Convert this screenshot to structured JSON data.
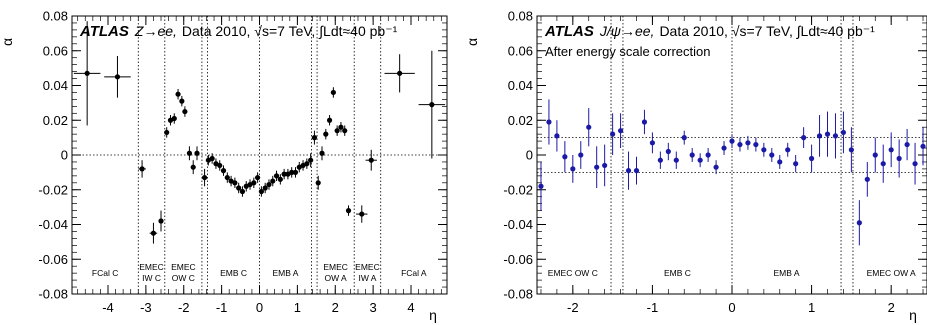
{
  "chart_data": [
    {
      "type": "scatter",
      "title_atlas": "ATLAS",
      "title_process": "Z→ee,",
      "title_rest": "Data 2010, √s=7 TeV, ∫Ldt≈40 pb⁻¹",
      "subtitle": "",
      "xlabel": "η",
      "ylabel": "α",
      "xlim": [
        -4.95,
        4.95
      ],
      "ylim": [
        -0.08,
        0.08
      ],
      "xticks": [
        -4,
        -3,
        -2,
        -1,
        0,
        1,
        2,
        3,
        4
      ],
      "xtick_labels": [
        "-4",
        "-3",
        "-2",
        "-1",
        "0",
        "1",
        "2",
        "3",
        "4"
      ],
      "yticks": [
        -0.08,
        -0.06,
        -0.04,
        -0.02,
        0,
        0.02,
        0.04,
        0.06,
        0.08
      ],
      "ytick_labels": [
        "-0.08",
        "-0.06",
        "-0.04",
        "-0.02",
        "0",
        "0.02",
        "0.04",
        "0.06",
        "0.08"
      ],
      "color": "#000000",
      "reference_lines": [
        0
      ],
      "boundaries": [
        -3.2,
        -2.5,
        -1.52,
        -1.37,
        0,
        1.37,
        1.52,
        2.5,
        3.2
      ],
      "region_labels": [
        {
          "lines": [
            "FCal C"
          ],
          "x": -4.075
        },
        {
          "lines": [
            "EMEC",
            "IW C"
          ],
          "x": -2.85
        },
        {
          "lines": [
            "EMEC",
            "OW C"
          ],
          "x": -2.01
        },
        {
          "lines": [
            "EMB C"
          ],
          "x": -0.685
        },
        {
          "lines": [
            "EMB A"
          ],
          "x": 0.685
        },
        {
          "lines": [
            "EMEC",
            "OW A"
          ],
          "x": 2.01
        },
        {
          "lines": [
            "EMEC",
            "IW A"
          ],
          "x": 2.85
        },
        {
          "lines": [
            "FCal A"
          ],
          "x": 4.075
        }
      ],
      "points": [
        {
          "x": -4.55,
          "y": 0.047,
          "xerr": 0.35,
          "yerr": 0.03
        },
        {
          "x": -3.75,
          "y": 0.045,
          "xerr": 0.35,
          "yerr": 0.012
        },
        {
          "x": -3.1,
          "y": -0.008,
          "xerr": 0.1,
          "yerr": 0.005
        },
        {
          "x": -2.8,
          "y": -0.045,
          "xerr": 0.1,
          "yerr": 0.006
        },
        {
          "x": -2.6,
          "y": -0.038,
          "xerr": 0.0,
          "yerr": 0.006
        },
        {
          "x": -2.45,
          "y": 0.013,
          "xerr": 0.0,
          "yerr": 0.003
        },
        {
          "x": -2.35,
          "y": 0.02,
          "xerr": 0.0,
          "yerr": 0.003
        },
        {
          "x": -2.25,
          "y": 0.021,
          "xerr": 0.0,
          "yerr": 0.003
        },
        {
          "x": -2.15,
          "y": 0.035,
          "xerr": 0.0,
          "yerr": 0.003
        },
        {
          "x": -2.05,
          "y": 0.031,
          "xerr": 0.0,
          "yerr": 0.003
        },
        {
          "x": -1.97,
          "y": 0.025,
          "xerr": 0.0,
          "yerr": 0.003
        },
        {
          "x": -1.85,
          "y": 0.001,
          "xerr": 0.0,
          "yerr": 0.004
        },
        {
          "x": -1.75,
          "y": -0.007,
          "xerr": 0.0,
          "yerr": 0.004
        },
        {
          "x": -1.65,
          "y": 0.001,
          "xerr": 0.0,
          "yerr": 0.004
        },
        {
          "x": -1.45,
          "y": -0.013,
          "xerr": 0.0,
          "yerr": 0.005
        },
        {
          "x": -1.35,
          "y": -0.003,
          "xerr": 0.0,
          "yerr": 0.003
        },
        {
          "x": -1.25,
          "y": -0.002,
          "xerr": 0.0,
          "yerr": 0.003
        },
        {
          "x": -1.15,
          "y": -0.005,
          "xerr": 0.0,
          "yerr": 0.003
        },
        {
          "x": -1.05,
          "y": -0.006,
          "xerr": 0.0,
          "yerr": 0.003
        },
        {
          "x": -0.95,
          "y": -0.009,
          "xerr": 0.0,
          "yerr": 0.003
        },
        {
          "x": -0.85,
          "y": -0.013,
          "xerr": 0.0,
          "yerr": 0.003
        },
        {
          "x": -0.75,
          "y": -0.015,
          "xerr": 0.0,
          "yerr": 0.003
        },
        {
          "x": -0.65,
          "y": -0.016,
          "xerr": 0.0,
          "yerr": 0.003
        },
        {
          "x": -0.55,
          "y": -0.019,
          "xerr": 0.0,
          "yerr": 0.003
        },
        {
          "x": -0.45,
          "y": -0.021,
          "xerr": 0.0,
          "yerr": 0.003
        },
        {
          "x": -0.35,
          "y": -0.018,
          "xerr": 0.0,
          "yerr": 0.003
        },
        {
          "x": -0.25,
          "y": -0.017,
          "xerr": 0.0,
          "yerr": 0.003
        },
        {
          "x": -0.15,
          "y": -0.016,
          "xerr": 0.0,
          "yerr": 0.003
        },
        {
          "x": -0.05,
          "y": -0.013,
          "xerr": 0.0,
          "yerr": 0.003
        },
        {
          "x": 0.05,
          "y": -0.021,
          "xerr": 0.0,
          "yerr": 0.003
        },
        {
          "x": 0.15,
          "y": -0.019,
          "xerr": 0.0,
          "yerr": 0.003
        },
        {
          "x": 0.25,
          "y": -0.017,
          "xerr": 0.0,
          "yerr": 0.003
        },
        {
          "x": 0.35,
          "y": -0.015,
          "xerr": 0.0,
          "yerr": 0.003
        },
        {
          "x": 0.45,
          "y": -0.012,
          "xerr": 0.0,
          "yerr": 0.003
        },
        {
          "x": 0.55,
          "y": -0.014,
          "xerr": 0.0,
          "yerr": 0.003
        },
        {
          "x": 0.65,
          "y": -0.011,
          "xerr": 0.0,
          "yerr": 0.003
        },
        {
          "x": 0.75,
          "y": -0.011,
          "xerr": 0.0,
          "yerr": 0.003
        },
        {
          "x": 0.85,
          "y": -0.01,
          "xerr": 0.0,
          "yerr": 0.003
        },
        {
          "x": 0.95,
          "y": -0.01,
          "xerr": 0.0,
          "yerr": 0.003
        },
        {
          "x": 1.05,
          "y": -0.007,
          "xerr": 0.0,
          "yerr": 0.003
        },
        {
          "x": 1.15,
          "y": -0.006,
          "xerr": 0.0,
          "yerr": 0.003
        },
        {
          "x": 1.25,
          "y": -0.005,
          "xerr": 0.0,
          "yerr": 0.003
        },
        {
          "x": 1.35,
          "y": -0.003,
          "xerr": 0.0,
          "yerr": 0.004
        },
        {
          "x": 1.45,
          "y": 0.01,
          "xerr": 0.0,
          "yerr": 0.004
        },
        {
          "x": 1.55,
          "y": -0.016,
          "xerr": 0.0,
          "yerr": 0.004
        },
        {
          "x": 1.65,
          "y": 0.001,
          "xerr": 0.0,
          "yerr": 0.004
        },
        {
          "x": 1.75,
          "y": 0.012,
          "xerr": 0.0,
          "yerr": 0.003
        },
        {
          "x": 1.85,
          "y": 0.02,
          "xerr": 0.0,
          "yerr": 0.003
        },
        {
          "x": 1.95,
          "y": 0.036,
          "xerr": 0.0,
          "yerr": 0.003
        },
        {
          "x": 2.05,
          "y": 0.014,
          "xerr": 0.0,
          "yerr": 0.003
        },
        {
          "x": 2.15,
          "y": 0.016,
          "xerr": 0.0,
          "yerr": 0.003
        },
        {
          "x": 2.25,
          "y": 0.014,
          "xerr": 0.0,
          "yerr": 0.003
        },
        {
          "x": 2.35,
          "y": -0.032,
          "xerr": 0.0,
          "yerr": 0.003
        },
        {
          "x": 2.7,
          "y": -0.034,
          "xerr": 0.15,
          "yerr": 0.005
        },
        {
          "x": 2.95,
          "y": -0.003,
          "xerr": 0.15,
          "yerr": 0.006
        },
        {
          "x": 3.7,
          "y": 0.047,
          "xerr": 0.4,
          "yerr": 0.011
        },
        {
          "x": 4.55,
          "y": 0.029,
          "xerr": 0.35,
          "yerr": 0.031
        }
      ]
    },
    {
      "type": "scatter",
      "title_atlas": "ATLAS",
      "title_process": "J/ψ→ee,",
      "title_rest": "Data 2010, √s=7 TeV, ∫Ldt≈40 pb⁻¹",
      "subtitle": "After energy scale correction",
      "xlabel": "η",
      "ylabel": "α",
      "xlim": [
        -2.45,
        2.45
      ],
      "ylim": [
        -0.08,
        0.08
      ],
      "xticks": [
        -2,
        -1,
        0,
        1,
        2
      ],
      "xtick_labels": [
        "-2",
        "-1",
        "0",
        "1",
        "2"
      ],
      "yticks": [
        -0.08,
        -0.06,
        -0.04,
        -0.02,
        0,
        0.02,
        0.04,
        0.06,
        0.08
      ],
      "ytick_labels": [
        "-0.08",
        "-0.06",
        "-0.04",
        "-0.02",
        "0",
        "0.02",
        "0.04",
        "0.06",
        "0.08"
      ],
      "color": "#1a1aa6",
      "reference_lines": [
        0.01,
        -0.01
      ],
      "boundaries": [
        -1.52,
        -1.37,
        0,
        1.37,
        1.52
      ],
      "region_labels": [
        {
          "lines": [
            "EMEC OW C"
          ],
          "x": -2.0
        },
        {
          "lines": [
            "EMB C"
          ],
          "x": -0.685
        },
        {
          "lines": [
            "EMB A"
          ],
          "x": 0.685
        },
        {
          "lines": [
            "EMEC OW A"
          ],
          "x": 2.0
        }
      ],
      "points": [
        {
          "x": -2.4,
          "y": -0.018,
          "yerr": 0.014
        },
        {
          "x": -2.3,
          "y": 0.019,
          "yerr": 0.013
        },
        {
          "x": -2.2,
          "y": 0.011,
          "yerr": 0.009
        },
        {
          "x": -2.1,
          "y": -0.001,
          "yerr": 0.009
        },
        {
          "x": -2.0,
          "y": -0.008,
          "yerr": 0.008
        },
        {
          "x": -1.9,
          "y": 0.0,
          "yerr": 0.008
        },
        {
          "x": -1.8,
          "y": 0.016,
          "yerr": 0.011
        },
        {
          "x": -1.7,
          "y": -0.007,
          "yerr": 0.012
        },
        {
          "x": -1.6,
          "y": -0.006,
          "yerr": 0.012
        },
        {
          "x": -1.5,
          "y": 0.012,
          "yerr": 0.012
        },
        {
          "x": -1.4,
          "y": 0.014,
          "yerr": 0.01
        },
        {
          "x": -1.3,
          "y": -0.009,
          "yerr": 0.011
        },
        {
          "x": -1.2,
          "y": -0.009,
          "yerr": 0.008
        },
        {
          "x": -1.1,
          "y": 0.019,
          "yerr": 0.007
        },
        {
          "x": -1.0,
          "y": 0.007,
          "yerr": 0.006
        },
        {
          "x": -0.9,
          "y": -0.003,
          "yerr": 0.005
        },
        {
          "x": -0.8,
          "y": 0.002,
          "yerr": 0.005
        },
        {
          "x": -0.7,
          "y": -0.003,
          "yerr": 0.005
        },
        {
          "x": -0.6,
          "y": 0.01,
          "yerr": 0.004
        },
        {
          "x": -0.5,
          "y": 0.0,
          "yerr": 0.004
        },
        {
          "x": -0.4,
          "y": -0.003,
          "yerr": 0.004
        },
        {
          "x": -0.3,
          "y": 0.0,
          "yerr": 0.004
        },
        {
          "x": -0.2,
          "y": -0.007,
          "yerr": 0.004
        },
        {
          "x": -0.1,
          "y": 0.004,
          "yerr": 0.004
        },
        {
          "x": 0.0,
          "y": 0.008,
          "yerr": 0.004
        },
        {
          "x": 0.1,
          "y": 0.006,
          "yerr": 0.004
        },
        {
          "x": 0.2,
          "y": 0.007,
          "yerr": 0.004
        },
        {
          "x": 0.3,
          "y": 0.006,
          "yerr": 0.004
        },
        {
          "x": 0.4,
          "y": 0.003,
          "yerr": 0.004
        },
        {
          "x": 0.5,
          "y": 0.0,
          "yerr": 0.004
        },
        {
          "x": 0.6,
          "y": -0.004,
          "yerr": 0.004
        },
        {
          "x": 0.7,
          "y": 0.003,
          "yerr": 0.004
        },
        {
          "x": 0.8,
          "y": -0.005,
          "yerr": 0.005
        },
        {
          "x": 0.9,
          "y": 0.01,
          "yerr": 0.006
        },
        {
          "x": 1.0,
          "y": -0.002,
          "yerr": 0.008
        },
        {
          "x": 1.1,
          "y": 0.011,
          "yerr": 0.012
        },
        {
          "x": 1.2,
          "y": 0.012,
          "yerr": 0.013
        },
        {
          "x": 1.3,
          "y": 0.011,
          "yerr": 0.013
        },
        {
          "x": 1.4,
          "y": 0.013,
          "yerr": 0.012
        },
        {
          "x": 1.5,
          "y": 0.003,
          "yerr": 0.013
        },
        {
          "x": 1.6,
          "y": -0.039,
          "yerr": 0.013
        },
        {
          "x": 1.7,
          "y": -0.014,
          "yerr": 0.01
        },
        {
          "x": 1.8,
          "y": 0.0,
          "yerr": 0.01
        },
        {
          "x": 1.9,
          "y": -0.005,
          "yerr": 0.011
        },
        {
          "x": 2.0,
          "y": 0.003,
          "yerr": 0.01
        },
        {
          "x": 2.1,
          "y": -0.002,
          "yerr": 0.011
        },
        {
          "x": 2.2,
          "y": 0.006,
          "yerr": 0.009
        },
        {
          "x": 2.3,
          "y": -0.005,
          "yerr": 0.012
        },
        {
          "x": 2.4,
          "y": 0.005,
          "yerr": 0.011
        }
      ]
    }
  ]
}
